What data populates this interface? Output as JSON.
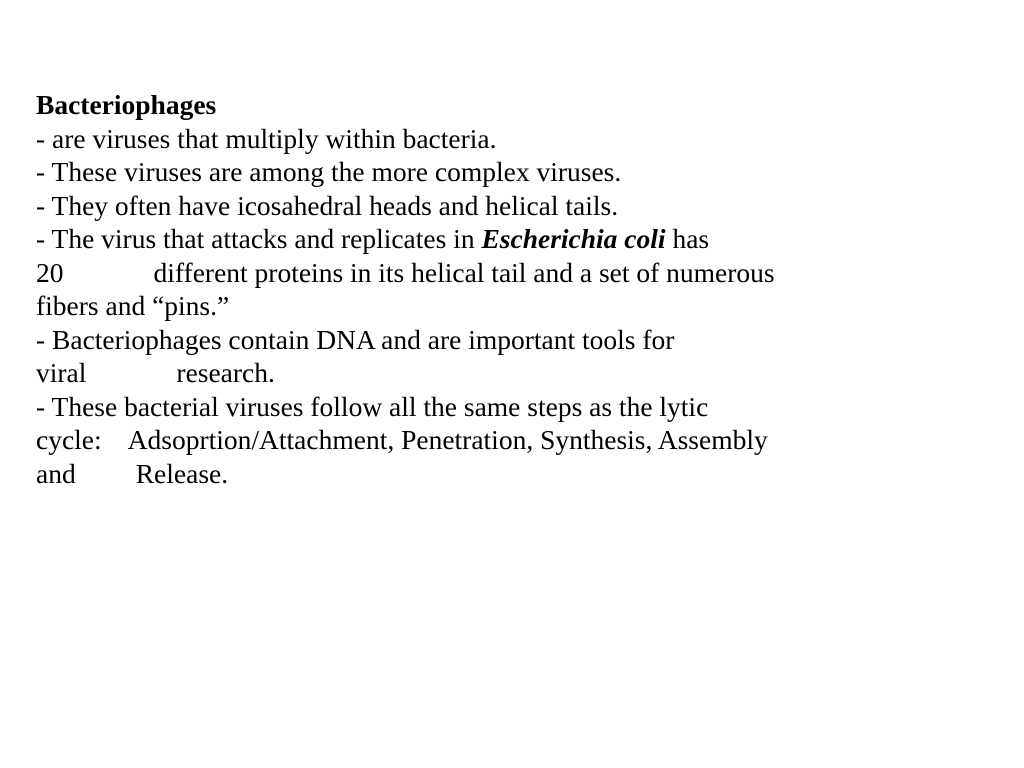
{
  "document": {
    "background_color": "#ffffff",
    "text_color": "#000000",
    "font_family": "Times New Roman",
    "base_fontsize_pt": 20,
    "title": "Bacteriophages",
    "paragraphs": [
      {
        "lines": [
          {
            "text": "- are viruses that multiply within bacteria.",
            "justify": false
          }
        ]
      },
      {
        "lines": [
          {
            "text": "- These viruses are among the more complex viruses.",
            "justify": false
          }
        ]
      },
      {
        "lines": [
          {
            "text": "- They often have icosahedral heads and helical tails.",
            "justify": false
          }
        ]
      },
      {
        "lines": [
          {
            "prefix": "- The virus that attacks and replicates in ",
            "emph": "Escherichia coli",
            "suffix": " has",
            "justify": true
          },
          {
            "text_a": "20",
            "text_b": "different   proteins in its helical tail and a set of numerous",
            "gap": "gap-small",
            "justify": true
          },
          {
            "text": "fibers and “pins.”",
            "justify": false
          }
        ]
      },
      {
        "lines": [
          {
            "text": "- Bacteriophages contain DNA and are important tools for",
            "justify": true
          },
          {
            "text_a": "viral",
            "text_b": "research.",
            "gap": "gap-small",
            "justify": false
          }
        ]
      },
      {
        "lines": [
          {
            "text": "- These bacterial viruses follow all the same steps as the lytic",
            "justify": true
          },
          {
            "text_a": "cycle:",
            "text_b": "Adsoprtion/Attachment, Penetration, Synthesis, Assembly",
            "gap": "gap-xs",
            "justify": true
          },
          {
            "text_a": "and",
            "text_b": "Release.",
            "gap": "gap-lg",
            "justify": false
          }
        ]
      }
    ]
  }
}
